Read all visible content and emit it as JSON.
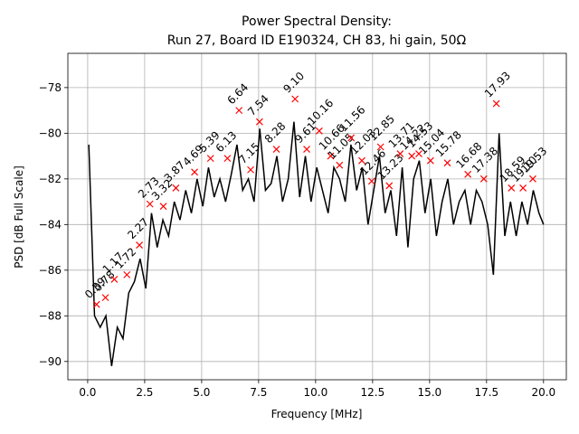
{
  "chart_data": {
    "type": "line",
    "title": "Power Spectral Density:",
    "subtitle": "Run 27, Board ID E190324, CH 83, hi gain, 50Ω",
    "x_label": "Frequency [MHz]",
    "y_label": "PSD [dB Full Scale]",
    "xlim": [
      -0.87,
      21.0
    ],
    "ylim": [
      -90.8,
      -76.5
    ],
    "xticks": [
      {
        "value": 0,
        "label": "0.0"
      },
      2.5,
      {
        "value": 5,
        "label": "5.0"
      },
      7.5,
      {
        "value": 10,
        "label": "10.0"
      },
      12.5,
      {
        "value": 15,
        "label": "15.0"
      },
      17.5,
      {
        "value": 20,
        "label": "20.0"
      }
    ],
    "yticks": [
      {
        "value": -78,
        "label": "−78"
      },
      {
        "value": -80,
        "label": "−80"
      },
      {
        "value": -82,
        "label": "−82"
      },
      {
        "value": -84,
        "label": "−84"
      },
      {
        "value": -86,
        "label": "−86"
      },
      {
        "value": -88,
        "label": "−88"
      },
      {
        "value": -90,
        "label": "−90"
      }
    ],
    "grid": true,
    "line": {
      "color": "#000000",
      "x": [
        0.05,
        0.3,
        0.55,
        0.8,
        1.05,
        1.3,
        1.55,
        1.8,
        2.05,
        2.3,
        2.55,
        2.8,
        3.05,
        3.3,
        3.55,
        3.8,
        4.05,
        4.3,
        4.55,
        4.8,
        5.05,
        5.3,
        5.55,
        5.8,
        6.05,
        6.3,
        6.55,
        6.8,
        7.05,
        7.3,
        7.55,
        7.8,
        8.05,
        8.3,
        8.55,
        8.8,
        9.05,
        9.3,
        9.55,
        9.8,
        10.05,
        10.3,
        10.55,
        10.8,
        11.05,
        11.3,
        11.55,
        11.8,
        12.05,
        12.3,
        12.55,
        12.8,
        13.05,
        13.3,
        13.55,
        13.8,
        14.05,
        14.3,
        14.55,
        14.8,
        15.05,
        15.3,
        15.55,
        15.8,
        16.05,
        16.3,
        16.55,
        16.8,
        17.05,
        17.3,
        17.55,
        17.8,
        18.05,
        18.3,
        18.55,
        18.8,
        19.05,
        19.3,
        19.55,
        19.8,
        20.0
      ],
      "values": [
        -80.5,
        -88.0,
        -88.5,
        -88.0,
        -90.2,
        -88.5,
        -89.0,
        -87.0,
        -86.5,
        -85.5,
        -86.8,
        -83.5,
        -85.0,
        -83.8,
        -84.5,
        -83.0,
        -83.8,
        -82.5,
        -83.5,
        -82.0,
        -83.2,
        -81.5,
        -82.8,
        -82.0,
        -83.0,
        -81.8,
        -80.5,
        -82.5,
        -82.0,
        -83.0,
        -79.8,
        -82.5,
        -82.2,
        -81.0,
        -83.0,
        -82.0,
        -79.5,
        -82.8,
        -81.0,
        -83.0,
        -81.5,
        -82.5,
        -83.5,
        -81.5,
        -82.0,
        -83.0,
        -80.5,
        -82.5,
        -81.5,
        -84.0,
        -82.5,
        -81.0,
        -83.5,
        -82.5,
        -84.5,
        -81.5,
        -85.0,
        -82.0,
        -81.2,
        -83.5,
        -82.0,
        -84.5,
        -83.0,
        -82.0,
        -84.0,
        -83.0,
        -82.5,
        -84.0,
        -82.5,
        -83.0,
        -84.0,
        -86.2,
        -80.0,
        -84.5,
        -83.0,
        -84.5,
        -83.0,
        -84.0,
        -82.5,
        -83.5,
        -84.0
      ]
    },
    "peaks": {
      "color": "#ff0000",
      "x": [
        0.39,
        0.78,
        1.17,
        1.72,
        2.27,
        2.73,
        3.32,
        3.87,
        4.69,
        5.39,
        6.13,
        6.64,
        7.15,
        7.54,
        8.28,
        9.1,
        9.61,
        10.16,
        10.66,
        11.05,
        11.56,
        12.03,
        12.46,
        12.85,
        13.23,
        13.71,
        14.22,
        14.53,
        15.04,
        15.78,
        16.68,
        17.38,
        17.93,
        18.59,
        19.1,
        19.53
      ],
      "values": [
        -87.5,
        -87.2,
        -86.4,
        -86.2,
        -84.9,
        -83.1,
        -83.2,
        -82.4,
        -81.7,
        -81.1,
        -81.1,
        -79.0,
        -81.6,
        -79.5,
        -80.7,
        -78.5,
        -80.7,
        -79.9,
        -81.0,
        -81.4,
        -80.2,
        -81.2,
        -82.1,
        -80.6,
        -82.3,
        -80.9,
        -81.0,
        -80.9,
        -81.2,
        -81.3,
        -81.8,
        -82.0,
        -78.7,
        -82.4,
        -82.4,
        -82.0
      ],
      "labels": [
        "0.39",
        "0.78",
        "1.17",
        "1.72",
        "2.27",
        "2.73",
        "3.32",
        "3.87",
        "4.69",
        "5.39",
        "6.13",
        "6.64",
        "7.15",
        "7.54",
        "8.28",
        "9.10",
        "9.61",
        "10.16",
        "10.66",
        "11.05",
        "11.56",
        "12.03",
        "12.46",
        "12.85",
        "13.23",
        "13.71",
        "14.22",
        "14.53",
        "15.04",
        "15.78",
        "16.68",
        "17.38",
        "17.93",
        "18.59",
        "19.10",
        "19.53"
      ]
    }
  }
}
